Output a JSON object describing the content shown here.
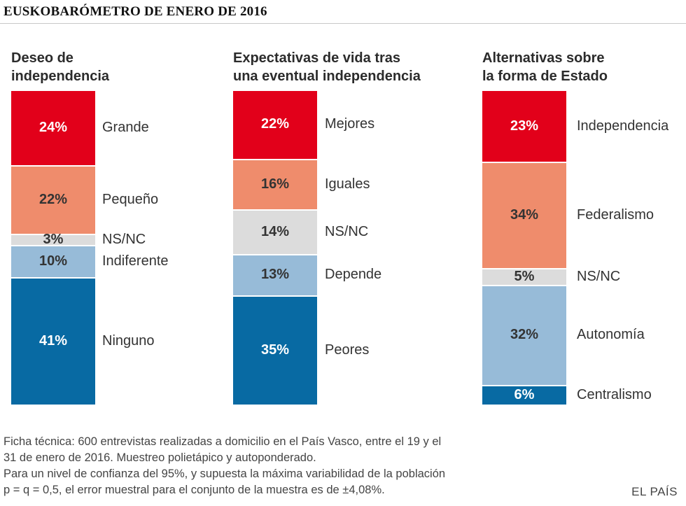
{
  "title": "EUSKOBARÓMETRO DE ENERO DE 2016",
  "colors": {
    "red": "#e2001a",
    "salmon": "#ef8c6c",
    "grey": "#dcdcdc",
    "lightblue": "#97bbd8",
    "blue": "#086aa3",
    "white_text": "#ffffff",
    "dark_text": "#333333"
  },
  "chart_data": [
    {
      "type": "stacked-bar",
      "title": "Deseo de independencia",
      "title_lines": [
        "Deseo de",
        "independencia"
      ],
      "segments": [
        {
          "label": "Grande",
          "value": 24,
          "display": "24%",
          "color": "red"
        },
        {
          "label": "Pequeño",
          "value": 22,
          "display": "22%",
          "color": "salmon"
        },
        {
          "label": "NS/NC",
          "value": 3,
          "display": "3%",
          "color": "grey"
        },
        {
          "label": "Indiferente",
          "value": 10,
          "display": "10%",
          "color": "lightblue"
        },
        {
          "label": "Ninguno",
          "value": 41,
          "display": "41%",
          "color": "blue"
        }
      ]
    },
    {
      "type": "stacked-bar",
      "title": "Expectativas de vida tras una eventual independencia",
      "title_lines": [
        "Expectativas de vida tras",
        "una eventual independencia"
      ],
      "segments": [
        {
          "label": "Mejores",
          "value": 22,
          "display": "22%",
          "color": "red"
        },
        {
          "label": "Iguales",
          "value": 16,
          "display": "16%",
          "color": "salmon"
        },
        {
          "label": "NS/NC",
          "value": 14,
          "display": "14%",
          "color": "grey"
        },
        {
          "label": "Depende",
          "value": 13,
          "display": "13%",
          "color": "lightblue"
        },
        {
          "label": "Peores",
          "value": 35,
          "display": "35%",
          "color": "blue"
        }
      ]
    },
    {
      "type": "stacked-bar",
      "title": "Alternativas sobre la forma de Estado",
      "title_lines": [
        "Alternativas sobre",
        "la forma de Estado"
      ],
      "segments": [
        {
          "label": "Independencia",
          "value": 23,
          "display": "23%",
          "color": "red"
        },
        {
          "label": "Federalismo",
          "value": 34,
          "display": "34%",
          "color": "salmon"
        },
        {
          "label": "NS/NC",
          "value": 5,
          "display": "5%",
          "color": "grey"
        },
        {
          "label": "Autonomía",
          "value": 32,
          "display": "32%",
          "color": "lightblue"
        },
        {
          "label": "Centralismo",
          "value": 6,
          "display": "6%",
          "color": "blue"
        }
      ]
    }
  ],
  "notes": [
    "Ficha técnica: 600 entrevistas realizadas a domicilio en el País Vasco, entre el 19 y el",
    "31 de enero de 2016. Muestreo polietápico y autoponderado.",
    "Para un nivel de confianza del 95%, y supuesta la máxima variabilidad de la población",
    "p = q = 0,5, el error muestral para el conjunto de la muestra es de ±4,08%."
  ],
  "brand": "EL PAÍS"
}
